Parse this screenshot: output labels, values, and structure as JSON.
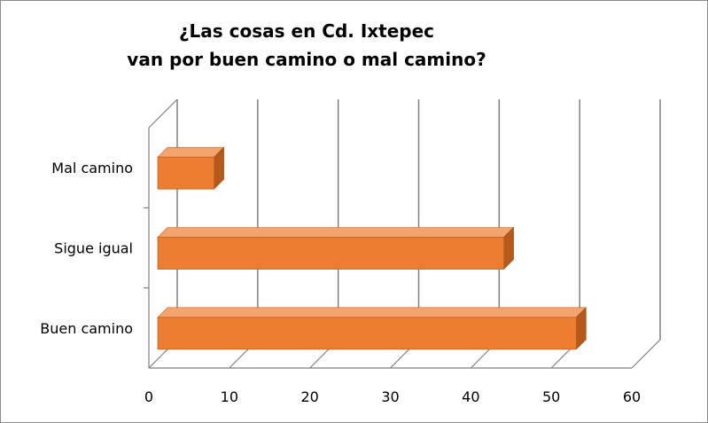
{
  "chart_data": {
    "type": "bar",
    "orientation": "horizontal",
    "style": "3d",
    "title": "¿Las cosas en Cd. Ixtepec van por buen camino o mal camino?",
    "title_lines": [
      "¿Las cosas en Cd. Ixtepec",
      "van por buen camino o mal camino?"
    ],
    "categories": [
      "Mal camino",
      "Sigue igual",
      "Buen camino"
    ],
    "values": [
      7,
      43,
      52
    ],
    "xlim": [
      0,
      60
    ],
    "xticks": [
      0,
      10,
      20,
      30,
      40,
      50,
      60
    ],
    "xtick_labels": [
      "0",
      "10",
      "20",
      "30",
      "40",
      "50",
      "60"
    ],
    "grid": "vertical",
    "legend": "none",
    "colors": {
      "bar": "#ed7d31",
      "bar_top": "#f4a46e",
      "bar_side": "#b65a1c",
      "grid": "#808080"
    }
  }
}
